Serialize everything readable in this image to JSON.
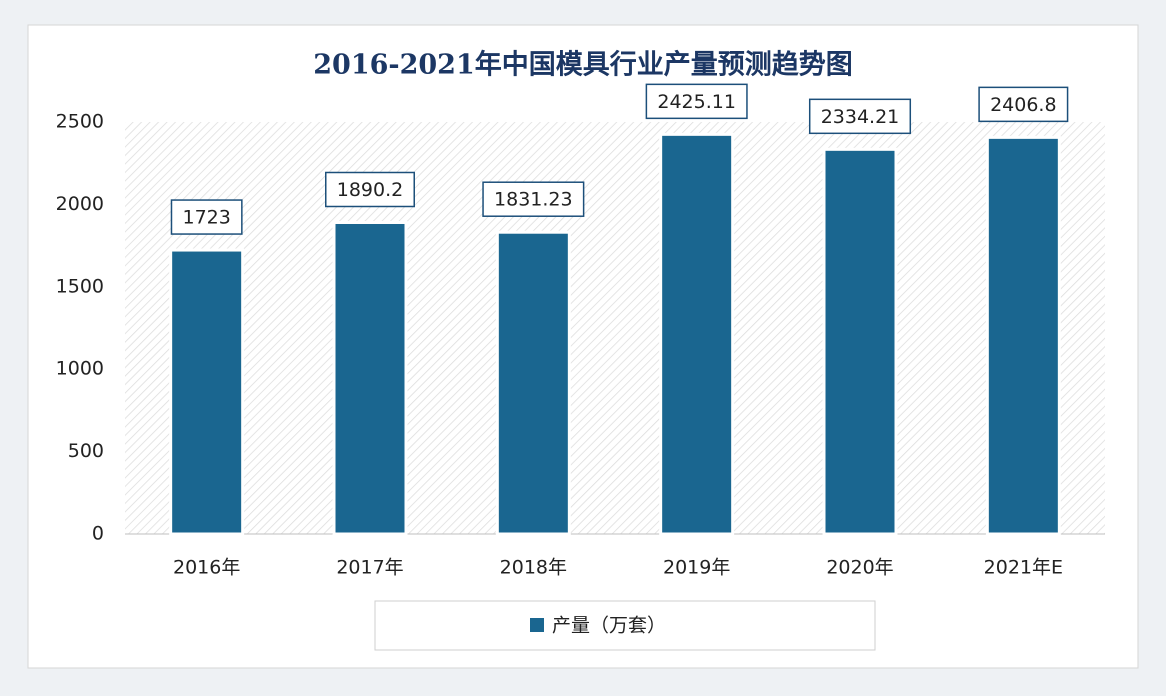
{
  "chart_data": {
    "type": "bar",
    "title": "2016-2021年中国模具行业产量预测趋势图",
    "categories": [
      "2016年",
      "2017年",
      "2018年",
      "2019年",
      "2020年",
      "2021年E"
    ],
    "series": [
      {
        "name": "产量（万套）",
        "color": "#1a6690",
        "values": [
          1723,
          1890.2,
          1831.23,
          2425.11,
          2334.21,
          2406.8
        ]
      }
    ],
    "ylim": [
      0,
      2500
    ],
    "yticks": [
      0,
      500,
      1000,
      1500,
      2000,
      2500
    ],
    "grid": false,
    "legend": "bottom"
  }
}
